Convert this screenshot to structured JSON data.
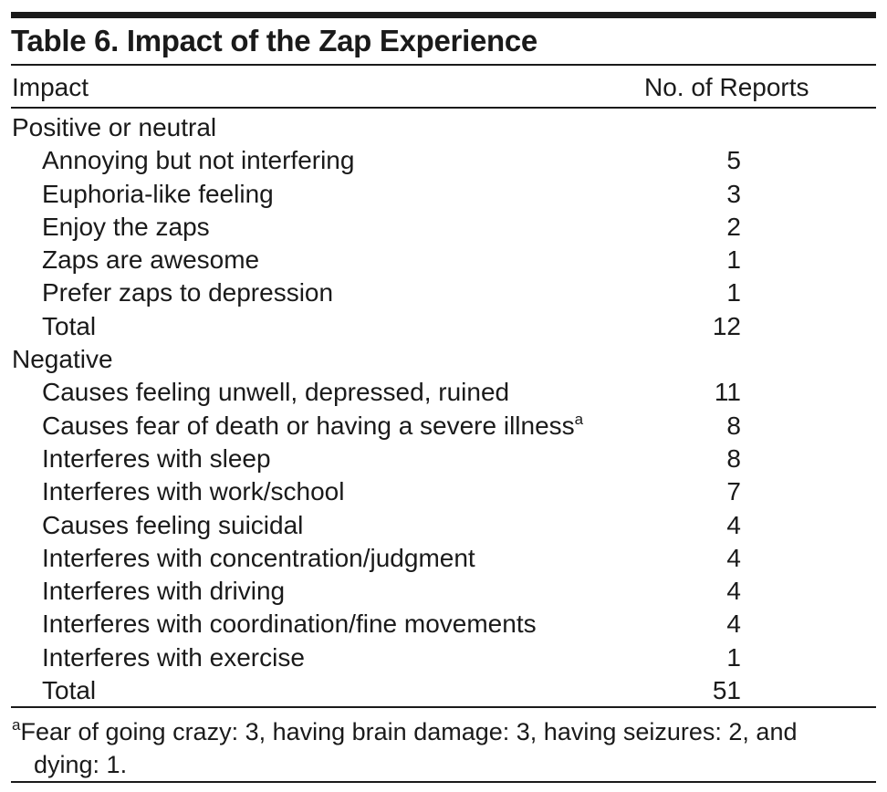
{
  "table": {
    "title": "Table 6. Impact of the Zap Experience",
    "columns": {
      "impact": "Impact",
      "reports": "No. of Reports"
    },
    "rows": [
      {
        "type": "group",
        "label": "Positive or neutral",
        "count": ""
      },
      {
        "type": "item",
        "label": "Annoying but not interfering",
        "count": "5"
      },
      {
        "type": "item",
        "label": "Euphoria-like feeling",
        "count": "3"
      },
      {
        "type": "item",
        "label": "Enjoy the zaps",
        "count": "2"
      },
      {
        "type": "item",
        "label": "Zaps are awesome",
        "count": "1"
      },
      {
        "type": "item",
        "label": "Prefer zaps to depression",
        "count": "1"
      },
      {
        "type": "item",
        "label": "Total",
        "count": "12"
      },
      {
        "type": "group",
        "label": "Negative",
        "count": ""
      },
      {
        "type": "item",
        "label": "Causes feeling unwell, depressed, ruined",
        "count": "11"
      },
      {
        "type": "item",
        "label": "Causes fear of death or having a severe illness",
        "count": "8",
        "note_mark": "a"
      },
      {
        "type": "item",
        "label": "Interferes with sleep",
        "count": "8"
      },
      {
        "type": "item",
        "label": "Interferes with work/school",
        "count": "7"
      },
      {
        "type": "item",
        "label": "Causes feeling suicidal",
        "count": "4"
      },
      {
        "type": "item",
        "label": "Interferes with concentration/judgment",
        "count": "4"
      },
      {
        "type": "item",
        "label": "Interferes with driving",
        "count": "4"
      },
      {
        "type": "item",
        "label": "Interferes with coordination/fine movements",
        "count": "4"
      },
      {
        "type": "item",
        "label": "Interferes with exercise",
        "count": "1"
      },
      {
        "type": "item",
        "label": "Total",
        "count": "51"
      }
    ],
    "footnote": {
      "mark": "a",
      "line1": "Fear of going crazy: 3, having brain damage: 3, having seizures: 2, and",
      "line2": "dying: 1."
    }
  }
}
